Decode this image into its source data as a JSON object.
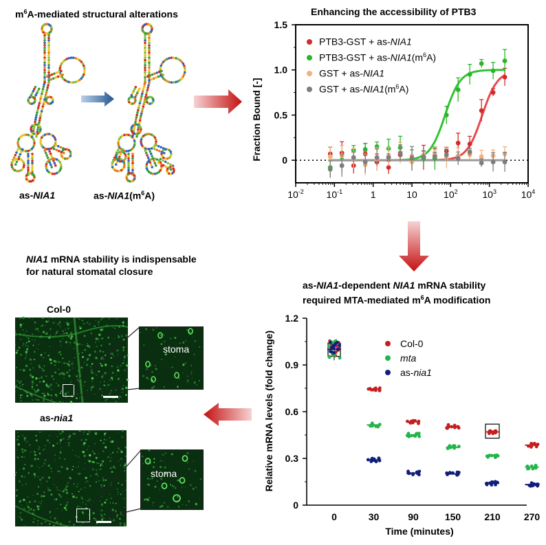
{
  "panel_a": {
    "title_pre": "m",
    "title_sup": "6",
    "title_post": "A-mediated  structural alterations",
    "label_left_pre": "as-",
    "label_left_italic": "NIA1",
    "label_right_pre": "as-",
    "label_right_italic": "NIA1",
    "label_right_open": "(m",
    "label_right_sup": "6",
    "label_right_close": "A)"
  },
  "panel_b": {
    "title": "Enhancing the accessibility  of PTB3",
    "chart_data": {
      "type": "scatter",
      "xscale": "log",
      "xlim": [
        0.01,
        10000
      ],
      "ylim": [
        -0.25,
        1.5
      ],
      "x_tick_labels": [
        "10-2",
        "10-1",
        "1",
        "10",
        "102",
        "103",
        "104"
      ],
      "y_tick_labels": [
        "0",
        "0.5",
        "1.0",
        "1.5"
      ],
      "ylabel": "Fraction Bound [-]",
      "legend_position": "top-left",
      "series": [
        {
          "color": "#d42a2a",
          "x": [
            0.078,
            0.156,
            0.3125,
            0.625,
            1.25,
            2.5,
            5,
            10,
            20,
            39,
            78,
            156,
            312,
            625,
            1250,
            2500
          ],
          "y": [
            0.07,
            0.08,
            -0.06,
            0.07,
            -0.02,
            -0.08,
            0.06,
            0.0,
            0.03,
            0.05,
            0.1,
            0.19,
            0.18,
            0.55,
            0.75,
            0.92
          ]
        },
        {
          "color": "#2bb52b",
          "x": [
            0.078,
            0.156,
            0.3125,
            0.625,
            1.25,
            2.5,
            5,
            10,
            20,
            39,
            78,
            156,
            312,
            625,
            1250,
            2500
          ],
          "y": [
            -0.08,
            -0.06,
            0.11,
            0.12,
            0.15,
            0.13,
            0.14,
            0.0,
            0.02,
            0.02,
            0.5,
            0.78,
            0.95,
            1.07,
            0.99,
            1.1
          ]
        },
        {
          "color": "#f2b07a",
          "x": [
            0.078,
            0.156,
            0.3125,
            0.625,
            1.25,
            2.5,
            5,
            10,
            20,
            39,
            78,
            156,
            312,
            625,
            1250,
            2500
          ],
          "y": [
            0.04,
            0.05,
            0.02,
            -0.05,
            0.01,
            0.04,
            0.08,
            -0.02,
            0.06,
            0.07,
            0.03,
            0.05,
            0.06,
            0.04,
            0.05,
            0.07
          ]
        },
        {
          "color": "#7d7d7d",
          "x": [
            0.078,
            0.156,
            0.3125,
            0.625,
            1.25,
            2.5,
            5,
            10,
            20,
            39,
            78,
            156,
            312,
            625,
            1250,
            2500
          ],
          "y": [
            -0.1,
            -0.06,
            0.03,
            -0.02,
            0.03,
            0.03,
            0.08,
            0.02,
            0.04,
            0.04,
            0.06,
            0.02,
            0.09,
            -0.03,
            -0.02,
            -0.02
          ]
        }
      ],
      "fits": [
        {
          "color": "#e84a4a",
          "kd": 650,
          "top": 0.99
        },
        {
          "color": "#33c233",
          "kd": 72,
          "top": 1.0
        },
        {
          "color": "#9a9a9a",
          "flat": 0.0
        }
      ]
    },
    "legend": [
      {
        "color": "#d42a2a",
        "pre": "PTB3-GST  + as-",
        "italic": "NIA1",
        "post": "",
        "sup": "",
        "post2": ""
      },
      {
        "color": "#2bb52b",
        "pre": "PTB3-GST  + as-",
        "italic": "NIA1",
        "post": "(m",
        "sup": "6",
        "post2": "A)"
      },
      {
        "color": "#f2b07a",
        "pre": "GST  + as-",
        "italic": "NIA1",
        "post": "",
        "sup": "",
        "post2": ""
      },
      {
        "color": "#7d7d7d",
        "pre": "GST  + as-",
        "italic": "NIA1",
        "post": "(m",
        "sup": "6",
        "post2": "A)"
      }
    ]
  },
  "panel_c": {
    "title_line1_italic": "NIA1",
    "title_line1_rest": " mRNA stability is indispensable",
    "title_line2": "for natural stomatal closure",
    "top_label": "Col-0",
    "bottom_label_pre": "as-",
    "bottom_label_italic": "nia1",
    "inset_label_top": "stoma",
    "inset_label_bottom": "stoma"
  },
  "panel_d": {
    "title_l1_pre": "as-",
    "title_l1_italic1": "NIA1",
    "title_l1_mid": "-dependent  ",
    "title_l1_italic2": "NIA1",
    "title_l1_post": " mRNA stability",
    "title_l2_pre": "required MTA-mediated  m",
    "title_l2_sup": "6",
    "title_l2_post": "A modification",
    "chart_data": {
      "type": "box",
      "categories": [
        "0",
        "30",
        "90",
        "150",
        "210",
        "270"
      ],
      "xlabel": "Time (minutes)",
      "ylabel": "Relative mRNA levels  (fold change)",
      "ylim": [
        0,
        1.2
      ],
      "y_tick_labels": [
        "0",
        "0.3",
        "0.6",
        "0.9",
        "1.2"
      ],
      "legend_position": "top-right",
      "series": [
        {
          "color": "#c41e1e",
          "values": [
            1.0,
            0.745,
            0.535,
            0.505,
            0.47,
            0.385
          ]
        },
        {
          "color": "#22b54a",
          "values": [
            1.0,
            0.515,
            0.45,
            0.37,
            0.315,
            0.245
          ]
        },
        {
          "color": "#111f7a",
          "values": [
            1.0,
            0.29,
            0.205,
            0.2,
            0.14,
            0.132
          ]
        }
      ]
    },
    "legend": [
      {
        "color": "#c41e1e",
        "pre": "Col-0",
        "italic": ""
      },
      {
        "color": "#22b54a",
        "pre": "",
        "italic": "mta"
      },
      {
        "color": "#111f7a",
        "pre": "as-",
        "italic": "nia1"
      }
    ]
  },
  "arrows": {
    "color_dark": "#c41010",
    "color_light": "#f2c9c9",
    "blue_dark": "#24568f",
    "blue_light": "#b9d0ea"
  }
}
